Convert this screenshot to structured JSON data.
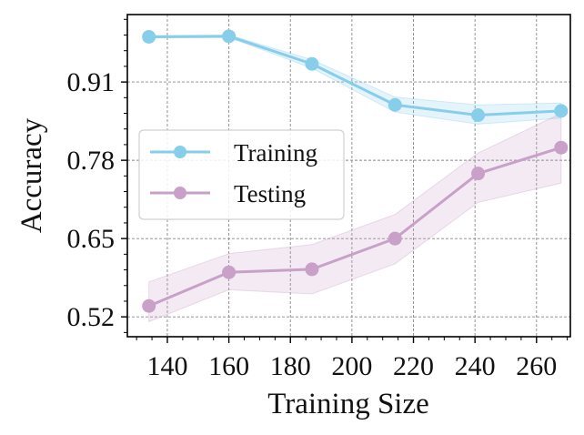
{
  "chart_data": {
    "type": "line",
    "title": "",
    "xlabel": "Training Size",
    "ylabel": "Accuracy",
    "xlim": [
      127,
      271
    ],
    "ylim": [
      0.487,
      1.022
    ],
    "xticks": [
      140,
      160,
      180,
      200,
      220,
      240,
      260
    ],
    "yticks": [
      0.52,
      0.65,
      0.78,
      0.91
    ],
    "ytick_labels": [
      "0.52",
      "0.65",
      "0.78",
      "0.91"
    ],
    "grid": true,
    "legend_position": "center-left",
    "series": [
      {
        "name": "Training",
        "color": "#87ceeb",
        "x": [
          134,
          160,
          187,
          214,
          241,
          268
        ],
        "y": [
          0.985,
          0.986,
          0.94,
          0.872,
          0.855,
          0.862
        ],
        "y_upper": [
          0.987,
          0.988,
          0.947,
          0.885,
          0.872,
          0.875
        ],
        "y_lower": [
          0.983,
          0.984,
          0.933,
          0.86,
          0.84,
          0.85
        ]
      },
      {
        "name": "Testing",
        "color": "#c8a0c8",
        "x": [
          134,
          160,
          187,
          214,
          241,
          268
        ],
        "y": [
          0.538,
          0.594,
          0.599,
          0.65,
          0.758,
          0.801
        ],
        "y_upper": [
          0.578,
          0.625,
          0.64,
          0.69,
          0.792,
          0.858
        ],
        "y_lower": [
          0.512,
          0.565,
          0.558,
          0.608,
          0.71,
          0.742
        ]
      }
    ]
  }
}
